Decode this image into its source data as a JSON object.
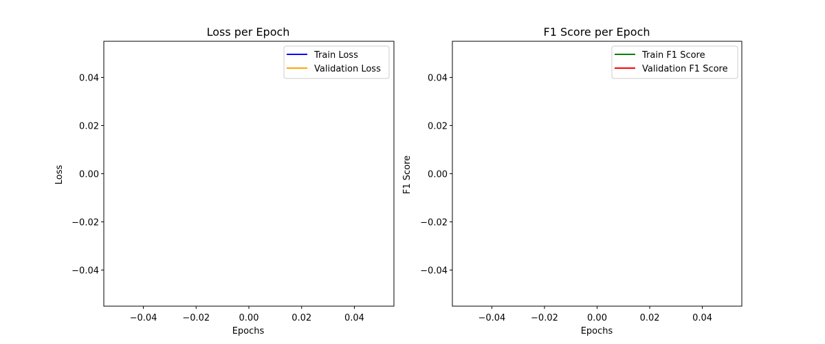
{
  "chart_data": [
    {
      "type": "line",
      "title": "Loss per Epoch",
      "xlabel": "Epochs",
      "ylabel": "Loss",
      "xlim": [
        -0.055,
        0.055
      ],
      "ylim": [
        -0.055,
        0.055
      ],
      "xticks": [
        -0.04,
        -0.02,
        0.0,
        0.02,
        0.04
      ],
      "xtick_labels": [
        "−0.04",
        "−0.02",
        "0.00",
        "0.02",
        "0.04"
      ],
      "yticks": [
        0.04,
        0.02,
        0.0,
        -0.02,
        -0.04
      ],
      "ytick_labels": [
        "0.04",
        "0.02",
        "0.00",
        "−0.02",
        "−0.04"
      ],
      "grid": false,
      "legend_position": "top-right",
      "series": [
        {
          "name": "Train Loss",
          "color": "#0000ff",
          "x": [],
          "y": []
        },
        {
          "name": "Validation Loss",
          "color": "#ffa500",
          "x": [],
          "y": []
        }
      ]
    },
    {
      "type": "line",
      "title": "F1 Score per Epoch",
      "xlabel": "Epochs",
      "ylabel": "F1 Score",
      "xlim": [
        -0.055,
        0.055
      ],
      "ylim": [
        -0.055,
        0.055
      ],
      "xticks": [
        -0.04,
        -0.02,
        0.0,
        0.02,
        0.04
      ],
      "xtick_labels": [
        "−0.04",
        "−0.02",
        "0.00",
        "0.02",
        "0.04"
      ],
      "yticks": [
        0.04,
        0.02,
        0.0,
        -0.02,
        -0.04
      ],
      "ytick_labels": [
        "0.04",
        "0.02",
        "0.00",
        "−0.02",
        "−0.04"
      ],
      "grid": false,
      "legend_position": "top-right",
      "series": [
        {
          "name": "Train F1 Score",
          "color": "#008000",
          "x": [],
          "y": []
        },
        {
          "name": "Validation F1 Score",
          "color": "#ff0000",
          "x": [],
          "y": []
        }
      ]
    }
  ]
}
